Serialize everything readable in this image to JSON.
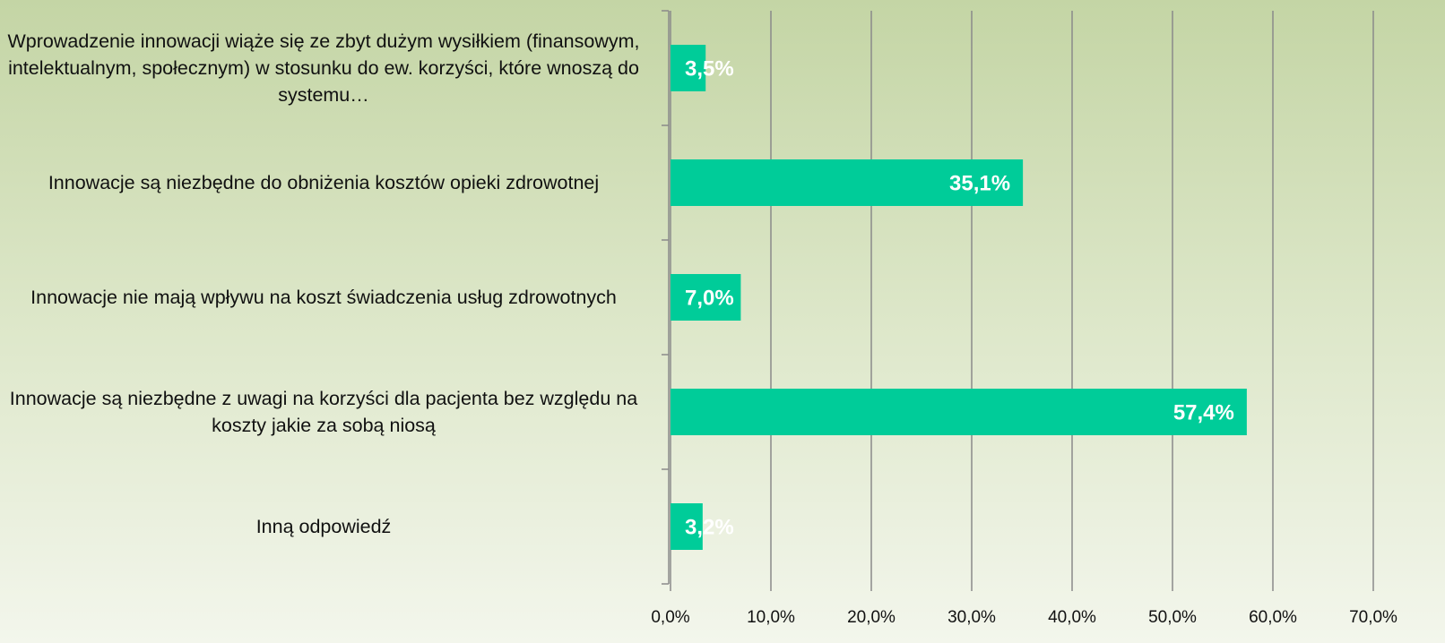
{
  "chart_data": {
    "type": "barh",
    "categories": [
      "Wprowadzenie innowacji wiąże się ze zbyt dużym wysiłkiem (finansowym, intelektualnym, społecznym) w stosunku do ew. korzyści, które wnoszą do systemu…",
      "Innowacje są niezbędne do obniżenia kosztów opieki zdrowotnej",
      "Innowacje nie mają wpływu na koszt świadczenia usług zdrowotnych",
      "Innowacje są niezbędne z uwagi na korzyści dla pacjenta bez względu na koszty jakie za sobą niosą",
      "Inną odpowiedź"
    ],
    "values": [
      3.5,
      35.1,
      7.0,
      57.4,
      3.2
    ],
    "value_labels": [
      "3,5%",
      "35,1%",
      "7,0%",
      "57,4%",
      "3,2%"
    ],
    "color": "#00cc99",
    "xlim": [
      0,
      70
    ],
    "xticks": [
      {
        "value": 0,
        "label": "0,0%"
      },
      {
        "value": 10,
        "label": "10,0%"
      },
      {
        "value": 20,
        "label": "20,0%"
      },
      {
        "value": 30,
        "label": "30,0%"
      },
      {
        "value": 40,
        "label": "40,0%"
      },
      {
        "value": 50,
        "label": "50,0%"
      },
      {
        "value": 60,
        "label": "60,0%"
      },
      {
        "value": 70,
        "label": "70,0%"
      }
    ],
    "grid": true
  }
}
